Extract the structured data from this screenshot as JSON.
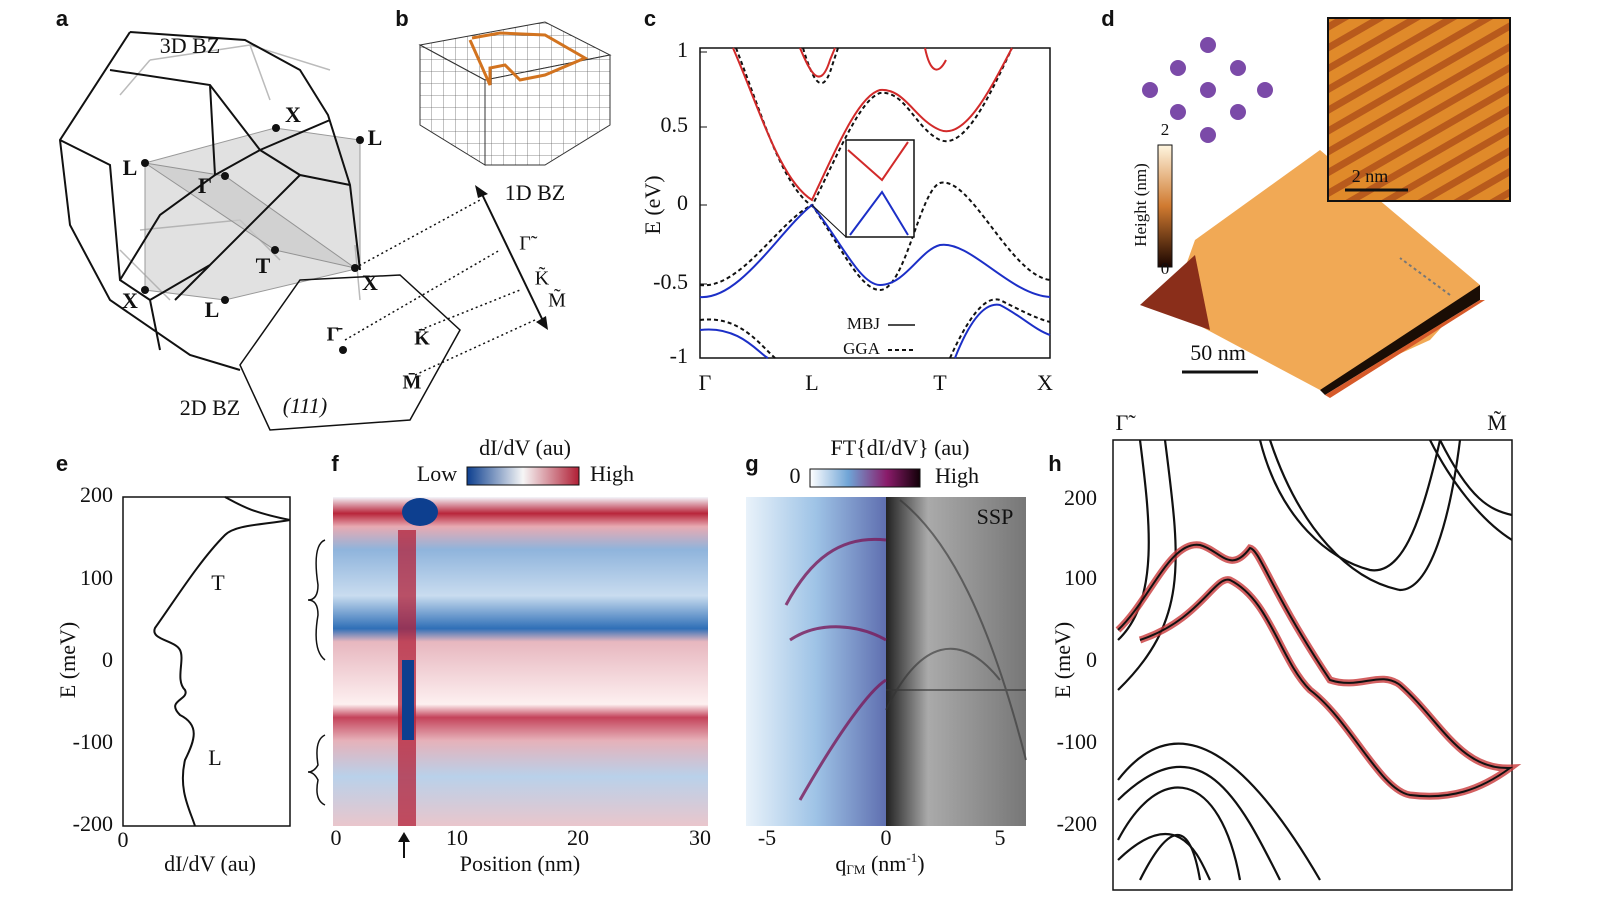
{
  "panels": {
    "a": {
      "label": "a",
      "bz3d": "3D BZ",
      "points": [
        "X",
        "L",
        "L",
        "Γ",
        "T",
        "X",
        "L",
        "X"
      ],
      "bz2d": "2D BZ",
      "surface": "(111)",
      "points2d": [
        "Γ̄",
        "K̄",
        "M̄"
      ],
      "bz1d": "1D BZ",
      "points1d": [
        "Γ̃",
        "K̃",
        "M̃"
      ]
    },
    "b": {
      "label": "b"
    },
    "c": {
      "label": "c",
      "ylabel": "E (eV)",
      "yticks": [
        "1",
        "0.5",
        "0",
        "-0.5",
        "-1"
      ],
      "xticks": [
        "Γ",
        "L",
        "T",
        "X"
      ],
      "legend": [
        "MBJ",
        "GGA"
      ]
    },
    "d": {
      "label": "d",
      "colorbar_title": "Height (nm)",
      "colorbar_ticks": [
        "2",
        "0"
      ],
      "inset_scale": "2 nm",
      "scale": "50 nm"
    },
    "e": {
      "label": "e",
      "ylabel": "E (meV)",
      "yticks": [
        "200",
        "100",
        "0",
        "-100",
        "-200"
      ],
      "xtick": "0",
      "xlabel": "dI/dV (au)",
      "annotations": [
        "T",
        "L"
      ]
    },
    "f": {
      "label": "f",
      "colorbar_title": "dI/dV (au)",
      "colorbar_low": "Low",
      "colorbar_high": "High",
      "xticks": [
        "0",
        "10",
        "20",
        "30"
      ],
      "xlabel": "Position (nm)"
    },
    "g": {
      "label": "g",
      "colorbar_title": "FT{dI/dV} (au)",
      "colorbar_low": "0",
      "colorbar_high": "High",
      "xticks": [
        "-5",
        "0",
        "5"
      ],
      "xlabel": [
        "q",
        "ΓM",
        " (nm",
        "-1",
        ")"
      ],
      "annotation": "SSP"
    },
    "h": {
      "label": "h",
      "ylabel": "E (meV)",
      "yticks": [
        "200",
        "100",
        "0",
        "-100",
        "-200"
      ],
      "top_labels": [
        "Γ̃",
        "M̃"
      ]
    }
  }
}
